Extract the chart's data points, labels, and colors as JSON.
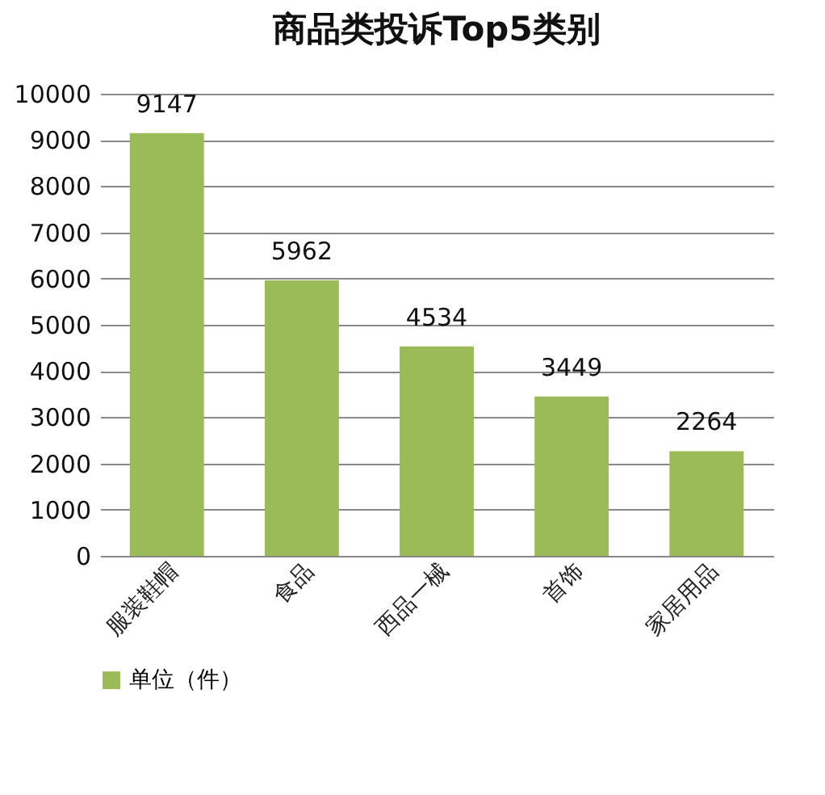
{
  "chart_data": {
    "type": "bar",
    "title": "商品类投诉Top5类别",
    "categories": [
      "服装鞋帽",
      "食品",
      "西品一械",
      "首饰",
      "家居用品"
    ],
    "series": [
      {
        "name": "单位（件）",
        "color": "#9bbb59",
        "values": [
          9147,
          5962,
          4534,
          3449,
          2264
        ]
      }
    ],
    "ylim": [
      0,
      10000
    ],
    "yticks": [
      0,
      1000,
      2000,
      3000,
      4000,
      5000,
      6000,
      7000,
      8000,
      9000,
      10000
    ],
    "grid": "y",
    "legend": "bottom",
    "data_labels": true
  }
}
